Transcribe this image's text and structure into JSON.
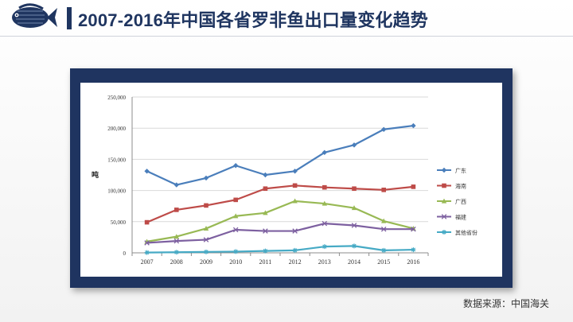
{
  "header": {
    "title": "2007-2016年中国各省罗非鱼出口量变化趋势"
  },
  "logo": {
    "icon": "fish-icon"
  },
  "footer": {
    "source": "数据来源：中国海关"
  },
  "chart_data": {
    "type": "line",
    "title": "",
    "xlabel": "",
    "ylabel": "吨",
    "ylim": [
      0,
      250000
    ],
    "y_ticks": [
      "0",
      "50,000",
      "100,000",
      "150,000",
      "200,000",
      "250,000"
    ],
    "y_tick_values": [
      0,
      50000,
      100000,
      150000,
      200000,
      250000
    ],
    "grid": "horizontal",
    "legend_position": "right",
    "categories": [
      "2007",
      "2008",
      "2009",
      "2010",
      "2011",
      "2012",
      "2013",
      "2014",
      "2015",
      "2016"
    ],
    "series": [
      {
        "name": "广东",
        "color": "#4a7ebb",
        "marker": "diamond",
        "values": [
          131000,
          109000,
          120000,
          140000,
          125000,
          131000,
          161000,
          173000,
          198000,
          204000
        ]
      },
      {
        "name": "海南",
        "color": "#be4b48",
        "marker": "square",
        "values": [
          49000,
          69000,
          76000,
          85000,
          103000,
          108000,
          105000,
          103000,
          101000,
          106000
        ]
      },
      {
        "name": "广西",
        "color": "#98b954",
        "marker": "triangle",
        "values": [
          18000,
          26000,
          39000,
          59000,
          64000,
          83000,
          79000,
          72000,
          51000,
          39000
        ]
      },
      {
        "name": "福建",
        "color": "#7d60a0",
        "marker": "x",
        "values": [
          16000,
          19000,
          21000,
          37000,
          35000,
          35000,
          47000,
          44000,
          38000,
          38000
        ]
      },
      {
        "name": "其他省份",
        "color": "#46aac5",
        "marker": "star",
        "values": [
          500,
          1000,
          1500,
          2000,
          3000,
          4000,
          10000,
          11000,
          4000,
          5000
        ]
      }
    ]
  }
}
